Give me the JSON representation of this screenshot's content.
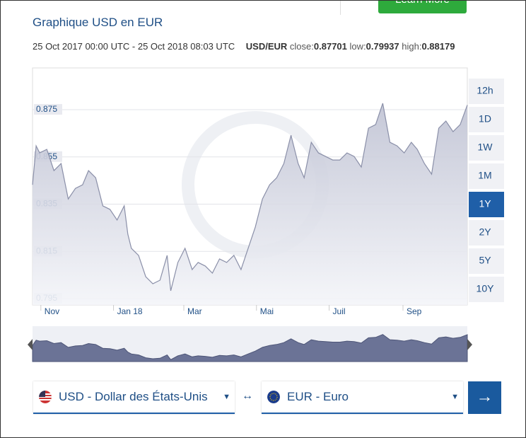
{
  "header": {
    "button": "Learn More",
    "title": "Graphique USD en EUR",
    "range": "25 Oct 2017 00:00 UTC - 25 Oct 2018 08:03 UTC",
    "pair": "USD/EUR",
    "close_label": "close:",
    "close": "0.87701",
    "low_label": "low:",
    "low": "0.79937",
    "high_label": "high:",
    "high": "0.88179"
  },
  "chart_data": {
    "type": "area",
    "color": "#8a8fa8",
    "grid": true,
    "x": [
      0,
      3,
      6,
      12,
      18,
      24,
      30,
      36,
      42,
      47,
      53,
      59,
      65,
      71,
      77,
      80,
      83,
      89,
      95,
      101,
      107,
      113,
      116,
      122,
      128,
      134,
      139,
      145,
      151,
      157,
      163,
      169,
      175,
      181,
      187,
      193,
      199,
      205,
      211,
      217,
      223,
      228,
      234,
      240,
      246,
      252,
      258,
      264,
      270,
      276,
      282,
      288,
      294,
      300,
      306,
      312,
      318,
      323,
      329,
      335,
      341,
      347,
      353,
      359,
      365
    ],
    "values": [
      0.8432,
      0.8597,
      0.8567,
      0.8582,
      0.8492,
      0.8522,
      0.8372,
      0.8417,
      0.8432,
      0.8492,
      0.8462,
      0.8343,
      0.8328,
      0.8283,
      0.8343,
      0.8223,
      0.8163,
      0.8133,
      0.8043,
      0.8013,
      0.8028,
      0.8133,
      0.7983,
      0.8103,
      0.8163,
      0.8073,
      0.8103,
      0.8088,
      0.8058,
      0.8118,
      0.8103,
      0.8133,
      0.8073,
      0.8163,
      0.8253,
      0.8372,
      0.8432,
      0.8462,
      0.8522,
      0.8642,
      0.8522,
      0.8462,
      0.8612,
      0.8567,
      0.8552,
      0.8537,
      0.8537,
      0.8567,
      0.8552,
      0.8507,
      0.8672,
      0.8687,
      0.8777,
      0.8612,
      0.8597,
      0.8567,
      0.8612,
      0.8582,
      0.8522,
      0.8477,
      0.8672,
      0.8702,
      0.8657,
      0.8687,
      0.877
    ],
    "xlim": [
      0,
      365
    ],
    "xticks": [
      {
        "value": 7,
        "label": "Nov"
      },
      {
        "value": 68,
        "label": "Jan 18"
      },
      {
        "value": 127,
        "label": "Mar"
      },
      {
        "value": 188,
        "label": "Mai"
      },
      {
        "value": 249,
        "label": "Juil"
      },
      {
        "value": 311,
        "label": "Sep"
      }
    ],
    "ylim": [
      0.7923,
      0.8927
    ],
    "yticks": [
      0.795,
      0.815,
      0.835,
      0.855,
      0.875
    ]
  },
  "ranges": [
    "12h",
    "1D",
    "1W",
    "1M",
    "1Y",
    "2Y",
    "5Y",
    "10Y"
  ],
  "active_range": 4,
  "from_currency": "USD - Dollar des États-Unis",
  "to_currency": "EUR - Euro"
}
